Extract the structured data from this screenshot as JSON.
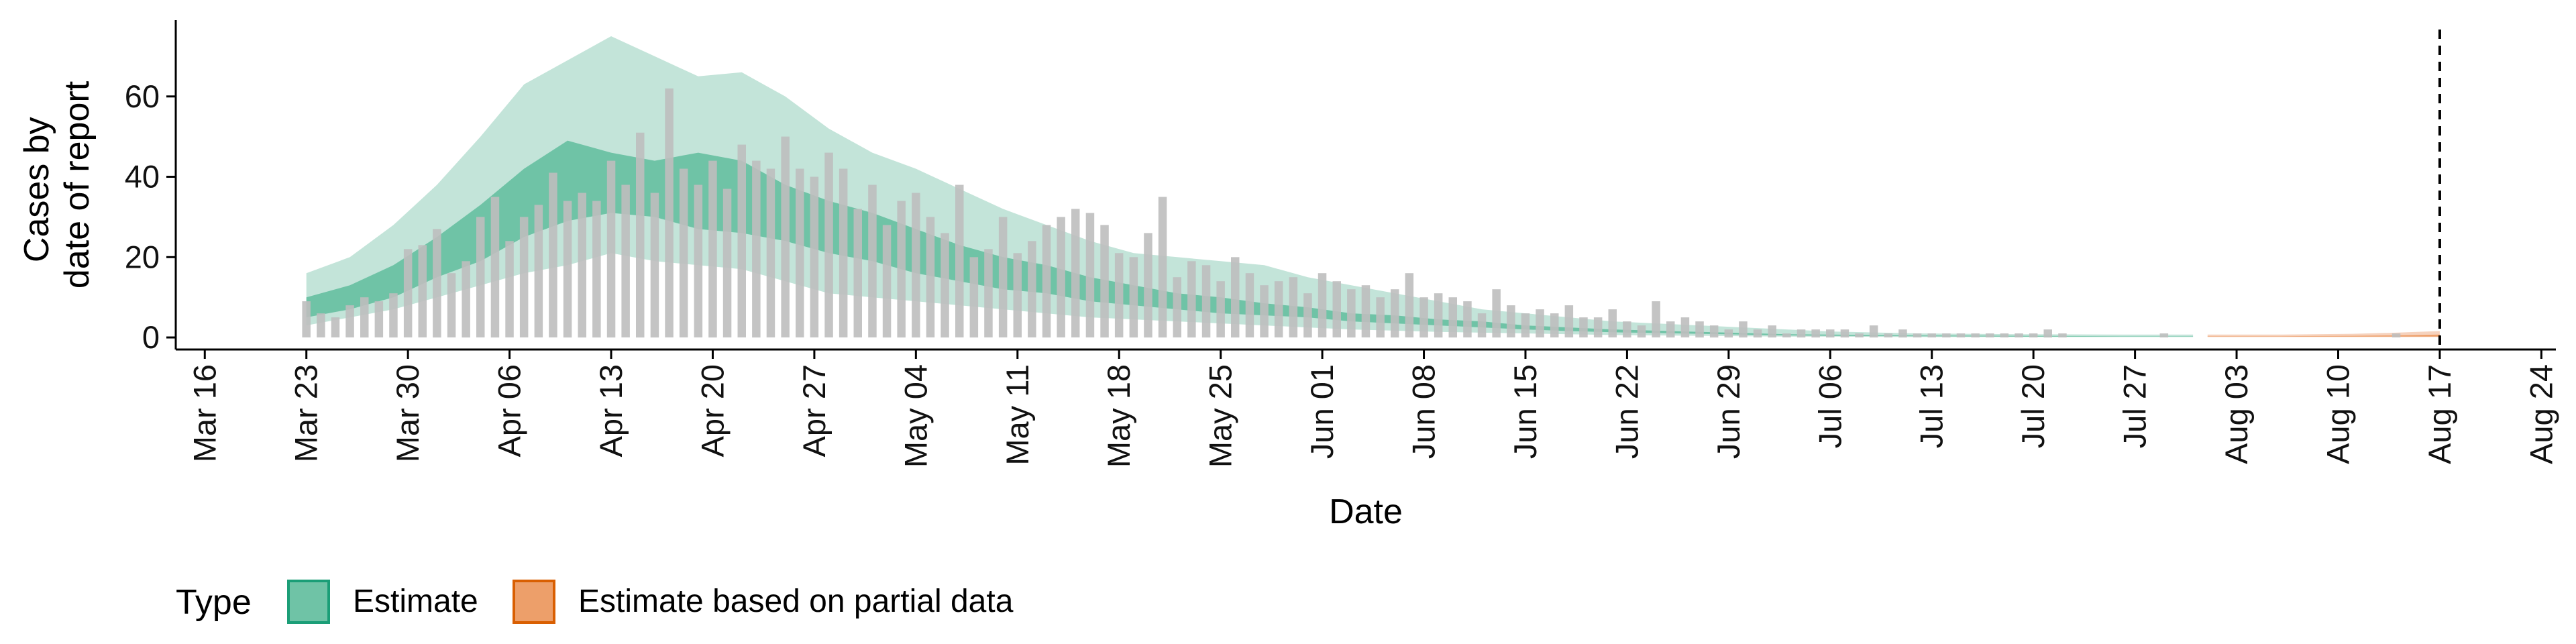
{
  "chart_data": {
    "type": "area",
    "xlabel": "Date",
    "ylabel": [
      "Cases by",
      "date of report"
    ],
    "xlim": [
      "2020-03-14",
      "2020-08-25"
    ],
    "ylim": [
      -3,
      79
    ],
    "x_ticks": [
      "2020-03-16",
      "2020-03-23",
      "2020-03-30",
      "2020-04-06",
      "2020-04-13",
      "2020-04-20",
      "2020-04-27",
      "2020-05-04",
      "2020-05-11",
      "2020-05-18",
      "2020-05-25",
      "2020-06-01",
      "2020-06-08",
      "2020-06-15",
      "2020-06-22",
      "2020-06-29",
      "2020-07-06",
      "2020-07-13",
      "2020-07-20",
      "2020-07-27",
      "2020-08-03",
      "2020-08-10",
      "2020-08-17",
      "2020-08-24"
    ],
    "x_tick_labels": [
      "Mar 16",
      "Mar 23",
      "Mar 30",
      "Apr 06",
      "Apr 13",
      "Apr 20",
      "Apr 27",
      "May 04",
      "May 11",
      "May 18",
      "May 25",
      "Jun 01",
      "Jun 08",
      "Jun 15",
      "Jun 22",
      "Jun 29",
      "Jul 06",
      "Jul 13",
      "Jul 20",
      "Jul 27",
      "Aug 03",
      "Aug 10",
      "Aug 17",
      "Aug 24"
    ],
    "y_ticks": [
      0,
      20,
      40,
      60
    ],
    "y_tick_labels": [
      "0",
      "20",
      "40",
      "60"
    ],
    "vline": "2020-08-17",
    "bars": {
      "start": "2020-03-23",
      "values": [
        9,
        6,
        5,
        8,
        10,
        9,
        11,
        22,
        23,
        27,
        16,
        19,
        30,
        35,
        24,
        30,
        33,
        41,
        34,
        36,
        34,
        44,
        38,
        51,
        36,
        62,
        42,
        38,
        44,
        37,
        48,
        44,
        42,
        50,
        42,
        40,
        46,
        42,
        32,
        38,
        28,
        34,
        36,
        30,
        26,
        38,
        20,
        22,
        30,
        21,
        24,
        28,
        30,
        32,
        31,
        28,
        21,
        20,
        26,
        35,
        15,
        19,
        18,
        14,
        20,
        16,
        13,
        14,
        15,
        11,
        16,
        14,
        12,
        13,
        10,
        12,
        16,
        10,
        11,
        10,
        9,
        6,
        12,
        8,
        6,
        7,
        6,
        8,
        5,
        5,
        7,
        4,
        3,
        9,
        4,
        5,
        4,
        3,
        2,
        4,
        2,
        3,
        1,
        2,
        2,
        2,
        2,
        1,
        3,
        1,
        2,
        1,
        1,
        1,
        1,
        1,
        1,
        1,
        1,
        1,
        2,
        1,
        0,
        0,
        0,
        0,
        0,
        0,
        1,
        0,
        0,
        0,
        0,
        0,
        0,
        0,
        0,
        0,
        0,
        0,
        0,
        0,
        0,
        0,
        1,
        0,
        0,
        0,
        0,
        0,
        0,
        0,
        0,
        0,
        0,
        0,
        0,
        0,
        0
      ],
      "color": "#bebebe"
    },
    "series": [
      {
        "name": "Estimate",
        "color": "#1b9e77",
        "fill_outer": "#c3e4d9",
        "fill_inner": "#6fc3a6",
        "dates": [
          "2020-03-23",
          "2020-03-26",
          "2020-03-29",
          "2020-04-01",
          "2020-04-04",
          "2020-04-07",
          "2020-04-10",
          "2020-04-13",
          "2020-04-16",
          "2020-04-19",
          "2020-04-22",
          "2020-04-25",
          "2020-04-28",
          "2020-05-01",
          "2020-05-04",
          "2020-05-07",
          "2020-05-10",
          "2020-05-13",
          "2020-05-16",
          "2020-05-19",
          "2020-05-22",
          "2020-05-25",
          "2020-05-28",
          "2020-05-31",
          "2020-06-03",
          "2020-06-06",
          "2020-06-09",
          "2020-06-12",
          "2020-06-15",
          "2020-06-18",
          "2020-06-21",
          "2020-06-24",
          "2020-06-27",
          "2020-06-30",
          "2020-07-03",
          "2020-07-06",
          "2020-07-12",
          "2020-07-19",
          "2020-07-26",
          "2020-07-31"
        ],
        "outer_low": [
          3,
          5,
          7,
          10,
          13,
          16,
          18,
          21,
          19,
          18,
          17,
          14,
          11,
          10,
          9,
          8,
          7,
          6,
          5,
          4.5,
          4,
          3.5,
          3,
          2.5,
          2,
          1.7,
          1.4,
          1.2,
          1,
          0.8,
          0.6,
          0.5,
          0.4,
          0.3,
          0.2,
          0.2,
          0.1,
          0.1,
          0.1,
          0.1
        ],
        "inner_low": [
          5,
          7,
          10,
          15,
          19,
          25,
          29,
          31,
          30,
          27,
          26,
          24,
          21,
          19,
          16,
          14,
          12,
          11,
          9,
          8,
          7,
          6,
          5.5,
          5,
          4,
          3.5,
          3,
          2.5,
          2,
          1.6,
          1.3,
          1.1,
          0.9,
          0.7,
          0.5,
          0.4,
          0.3,
          0.2,
          0.2,
          0.2
        ],
        "inner_high": [
          10,
          13,
          18,
          25,
          33,
          42,
          49,
          46,
          44,
          46,
          44,
          38,
          34,
          31,
          27,
          23,
          20,
          18,
          15,
          13,
          11,
          10,
          8.5,
          7.5,
          6,
          5.5,
          4.5,
          4,
          3,
          2.5,
          2,
          1.7,
          1.4,
          1.1,
          0.8,
          0.7,
          0.5,
          0.4,
          0.3,
          0.3
        ],
        "outer_high": [
          16,
          20,
          28,
          38,
          50,
          63,
          69,
          75,
          70,
          65,
          66,
          60,
          52,
          46,
          42,
          37,
          32,
          28,
          24,
          21,
          20,
          19,
          18,
          15,
          13,
          11,
          9,
          7,
          6,
          5,
          4,
          3.5,
          3,
          2.5,
          2,
          1.5,
          1,
          0.8,
          0.7,
          0.7
        ]
      },
      {
        "name": "Estimate based on partial data",
        "color": "#d95f02",
        "fill_outer": "#f6d2bd",
        "fill_inner": "#ed9f6a",
        "dates": [
          "2020-08-01",
          "2020-08-06",
          "2020-08-11",
          "2020-08-14",
          "2020-08-17"
        ],
        "outer_low": [
          0.1,
          0.1,
          0.1,
          0.1,
          0.1
        ],
        "inner_low": [
          0.2,
          0.2,
          0.2,
          0.2,
          0.2
        ],
        "inner_high": [
          0.3,
          0.3,
          0.4,
          0.5,
          0.7
        ],
        "outer_high": [
          0.7,
          0.7,
          0.9,
          1.2,
          1.6
        ]
      }
    ],
    "legend": {
      "title": "Type",
      "position": "bottom-left",
      "items": [
        {
          "label": "Estimate",
          "fill": "#6fc3a6",
          "border": "#1b9e77"
        },
        {
          "label": "Estimate based on partial data",
          "fill": "#ed9f6a",
          "border": "#d95f02"
        }
      ]
    }
  }
}
